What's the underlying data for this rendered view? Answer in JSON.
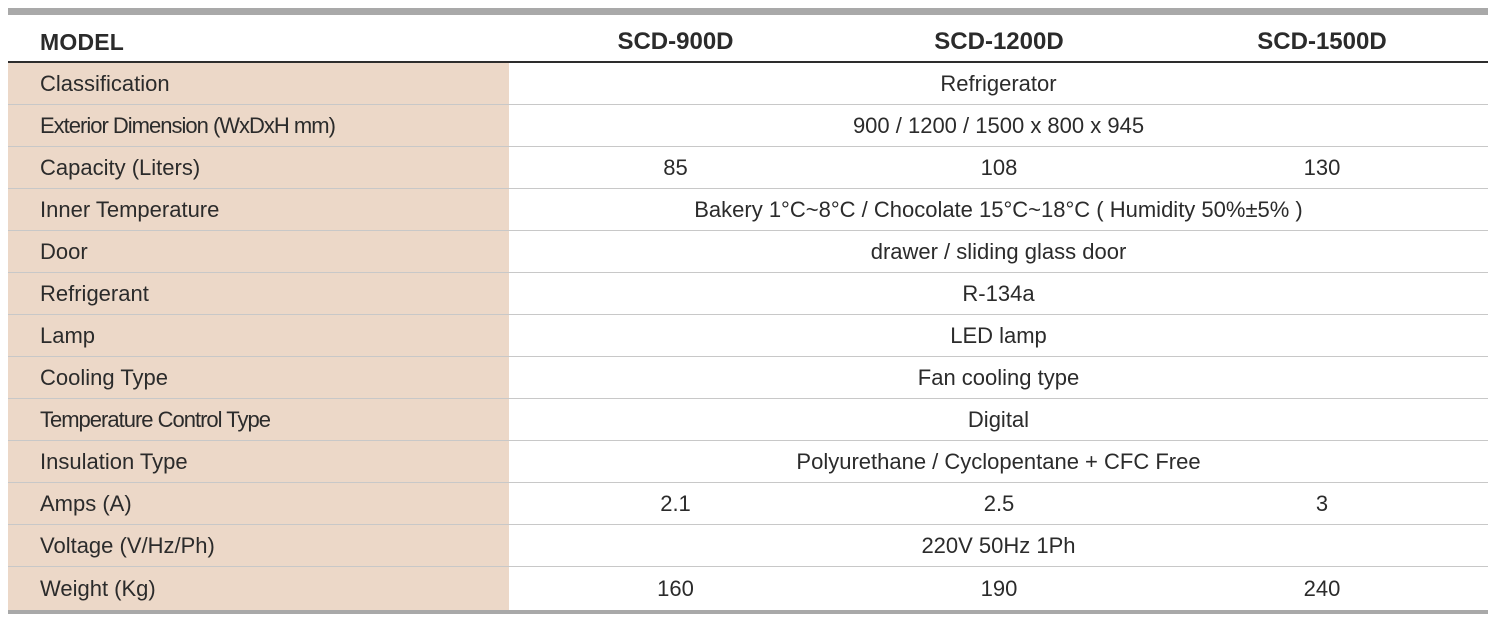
{
  "header": {
    "label": "MODEL",
    "models": [
      "SCD-900D",
      "SCD-1200D",
      "SCD-1500D"
    ]
  },
  "rows": [
    {
      "label": "Classification",
      "value": "Refrigerator"
    },
    {
      "label": "Exterior Dimension (WxDxH mm)",
      "value": "900 / 1200 / 1500 x 800 x 945"
    },
    {
      "label": "Capacity (Liters)",
      "values": [
        "85",
        "108",
        "130"
      ]
    },
    {
      "label": "Inner Temperature",
      "value": "Bakery 1°C~8°C /  Chocolate 15°C~18°C  ( Humidity 50%±5% )"
    },
    {
      "label": "Door",
      "value": "drawer / sliding glass door"
    },
    {
      "label": "Refrigerant",
      "value": "R-134a"
    },
    {
      "label": "Lamp",
      "value": "LED lamp"
    },
    {
      "label": "Cooling Type",
      "value": "Fan cooling type"
    },
    {
      "label": "Temperature Control Type",
      "value": "Digital"
    },
    {
      "label": "Insulation Type",
      "value": "Polyurethane / Cyclopentane + CFC Free"
    },
    {
      "label": "Amps (A)",
      "values": [
        "2.1",
        "2.5",
        "3"
      ]
    },
    {
      "label": "Voltage (V/Hz/Ph)",
      "value": "220V 50Hz 1Ph"
    },
    {
      "label": "Weight (Kg)",
      "values": [
        "160",
        "190",
        "240"
      ]
    }
  ],
  "colors": {
    "label_background": "#ecd8c8",
    "rule": "#a9a9a9",
    "text": "#2b2b2b"
  }
}
